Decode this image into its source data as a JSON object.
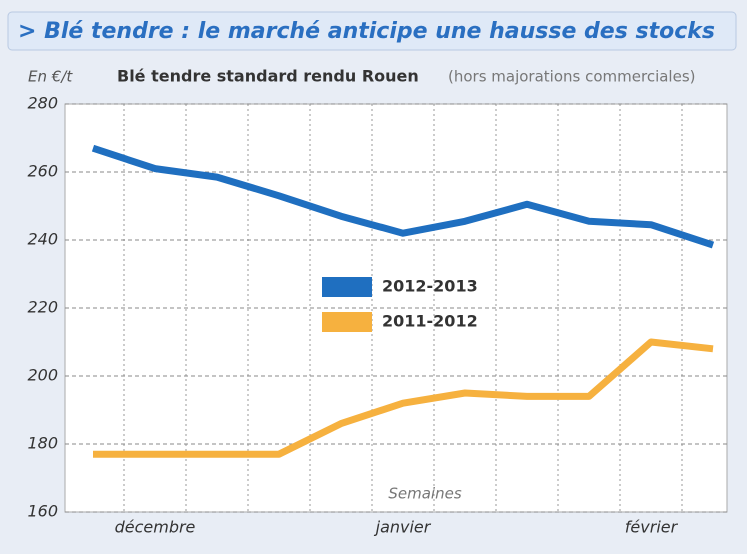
{
  "chart_data": {
    "type": "line",
    "title": "> Blé tendre : le marché anticipe une hausse des stocks",
    "y_label": "En €/t",
    "subtitle": "Blé tendre standard rendu Rouen",
    "subtitle_note": "(hors majorations commerciales)",
    "x_label": "Semaines",
    "categories": [
      null,
      "décembre",
      null,
      null,
      null,
      "janvier",
      null,
      null,
      null,
      "février",
      null
    ],
    "series": [
      {
        "name": "2012-2013",
        "color": "#1f6fc0",
        "values": [
          267,
          261,
          258.5,
          253,
          247,
          242,
          245.5,
          250.5,
          245.5,
          244.5,
          238.5
        ]
      },
      {
        "name": "2011-2012",
        "color": "#f6b13f",
        "values": [
          177,
          177,
          177,
          177,
          186,
          192,
          195,
          194,
          194,
          210,
          208
        ]
      }
    ],
    "ylim": [
      160,
      280
    ],
    "yticks": [
      160,
      180,
      200,
      220,
      240,
      260,
      280
    ],
    "grid": true,
    "legend": "center"
  }
}
